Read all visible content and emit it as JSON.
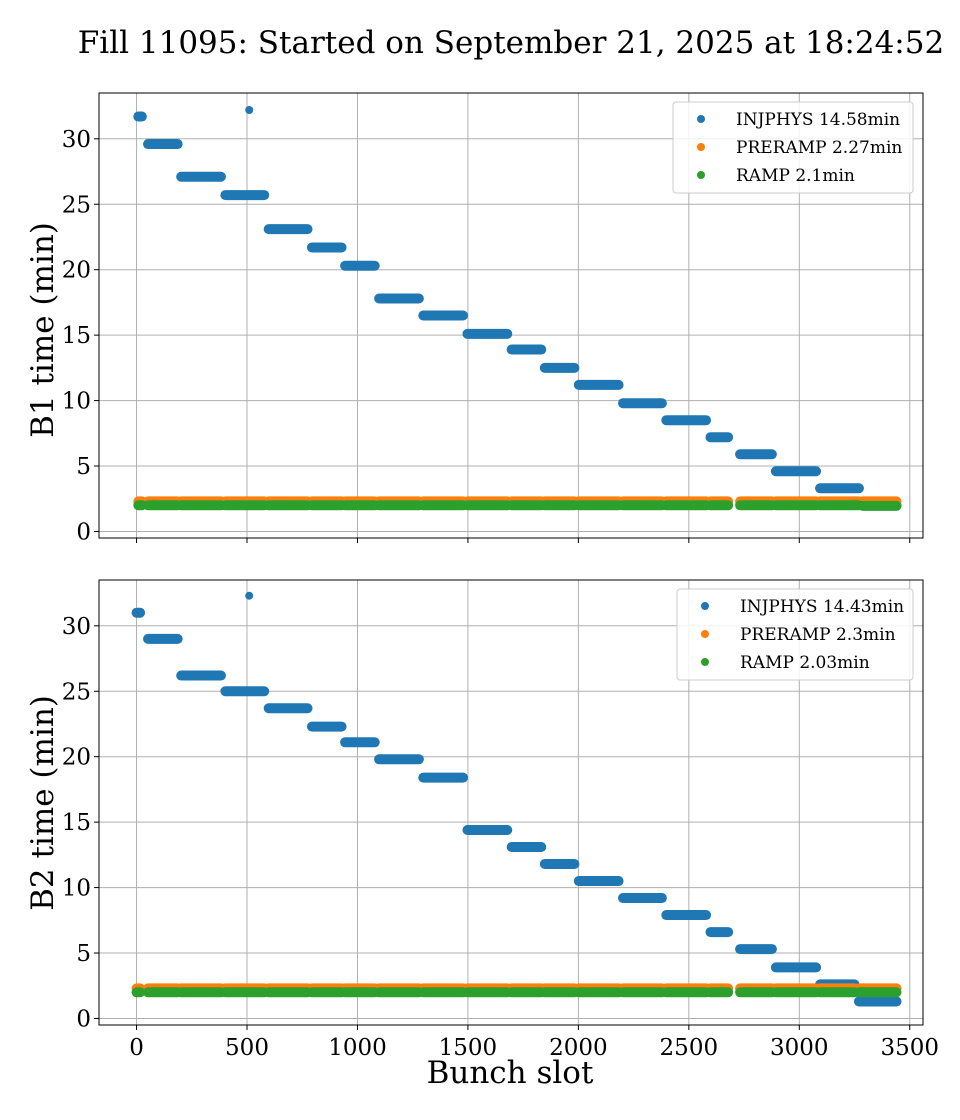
{
  "figure_title": "Fill 11095: Started on September 21, 2025 at 18:24:52",
  "chart_data": [
    {
      "type": "scatter",
      "ylabel": "B1 time (min)",
      "xlabel": "",
      "xlim": [
        -170,
        3560
      ],
      "ylim": [
        -0.5,
        33.5
      ],
      "xticks": [
        0,
        500,
        1000,
        1500,
        2000,
        2500,
        3000,
        3500
      ],
      "xtick_labels_visible": false,
      "yticks": [
        0,
        5,
        10,
        15,
        20,
        25,
        30
      ],
      "grid": true,
      "legend_position": "top-right",
      "series": [
        {
          "name": "INJPHYS 14.58min",
          "color": "#1f77b4",
          "trains": [
            {
              "x": [
                8,
                24
              ],
              "y": 31.7
            },
            {
              "x": [
                52,
                186
              ],
              "y": 29.6
            },
            {
              "x": [
                202,
                382
              ],
              "y": 27.1
            },
            {
              "x": [
                402,
                578
              ],
              "y": 25.7
            },
            {
              "x": [
                598,
                774
              ],
              "y": 23.1
            },
            {
              "x": [
                794,
                928
              ],
              "y": 21.7
            },
            {
              "x": [
                944,
                1078
              ],
              "y": 20.3
            },
            {
              "x": [
                1098,
                1278
              ],
              "y": 17.8
            },
            {
              "x": [
                1298,
                1478
              ],
              "y": 16.5
            },
            {
              "x": [
                1498,
                1678
              ],
              "y": 15.1
            },
            {
              "x": [
                1698,
                1832
              ],
              "y": 13.9
            },
            {
              "x": [
                1848,
                1982
              ],
              "y": 12.5
            },
            {
              "x": [
                2002,
                2182
              ],
              "y": 11.2
            },
            {
              "x": [
                2202,
                2378
              ],
              "y": 9.8
            },
            {
              "x": [
                2398,
                2578
              ],
              "y": 8.5
            },
            {
              "x": [
                2598,
                2678
              ],
              "y": 7.2
            },
            {
              "x": [
                2732,
                2876
              ],
              "y": 5.9
            },
            {
              "x": [
                2894,
                3076
              ],
              "y": 4.6
            },
            {
              "x": [
                3094,
                3270
              ],
              "y": 3.3
            },
            {
              "x": [
                3288,
                3440
              ],
              "y": 2.0
            }
          ],
          "points": [
            {
              "x": 510,
              "y": 32.2
            }
          ]
        },
        {
          "name": "PRERAMP 2.27min",
          "color": "#ff7f0e",
          "trains": [
            {
              "x": [
                8,
                24
              ],
              "y": 2.3
            },
            {
              "x": [
                52,
                186
              ],
              "y": 2.3
            },
            {
              "x": [
                202,
                382
              ],
              "y": 2.3
            },
            {
              "x": [
                402,
                578
              ],
              "y": 2.3
            },
            {
              "x": [
                598,
                774
              ],
              "y": 2.3
            },
            {
              "x": [
                794,
                928
              ],
              "y": 2.3
            },
            {
              "x": [
                944,
                1078
              ],
              "y": 2.3
            },
            {
              "x": [
                1098,
                1278
              ],
              "y": 2.3
            },
            {
              "x": [
                1298,
                1478
              ],
              "y": 2.3
            },
            {
              "x": [
                1498,
                1678
              ],
              "y": 2.3
            },
            {
              "x": [
                1698,
                1832
              ],
              "y": 2.3
            },
            {
              "x": [
                1848,
                1982
              ],
              "y": 2.3
            },
            {
              "x": [
                2002,
                2182
              ],
              "y": 2.3
            },
            {
              "x": [
                2202,
                2378
              ],
              "y": 2.3
            },
            {
              "x": [
                2398,
                2578
              ],
              "y": 2.3
            },
            {
              "x": [
                2598,
                2678
              ],
              "y": 2.3
            },
            {
              "x": [
                2732,
                2876
              ],
              "y": 2.3
            },
            {
              "x": [
                2894,
                3076
              ],
              "y": 2.3
            },
            {
              "x": [
                3094,
                3270
              ],
              "y": 2.3
            },
            {
              "x": [
                3288,
                3440
              ],
              "y": 2.3
            }
          ],
          "points": []
        },
        {
          "name": "RAMP 2.1min",
          "color": "#2ca02c",
          "trains": [
            {
              "x": [
                8,
                24
              ],
              "y": 2.0
            },
            {
              "x": [
                52,
                186
              ],
              "y": 2.0
            },
            {
              "x": [
                202,
                382
              ],
              "y": 2.0
            },
            {
              "x": [
                402,
                578
              ],
              "y": 2.0
            },
            {
              "x": [
                598,
                774
              ],
              "y": 2.0
            },
            {
              "x": [
                794,
                928
              ],
              "y": 2.0
            },
            {
              "x": [
                944,
                1078
              ],
              "y": 2.0
            },
            {
              "x": [
                1098,
                1278
              ],
              "y": 2.0
            },
            {
              "x": [
                1298,
                1478
              ],
              "y": 2.0
            },
            {
              "x": [
                1498,
                1678
              ],
              "y": 2.0
            },
            {
              "x": [
                1698,
                1832
              ],
              "y": 2.0
            },
            {
              "x": [
                1848,
                1982
              ],
              "y": 2.0
            },
            {
              "x": [
                2002,
                2182
              ],
              "y": 2.0
            },
            {
              "x": [
                2202,
                2378
              ],
              "y": 2.0
            },
            {
              "x": [
                2398,
                2578
              ],
              "y": 2.0
            },
            {
              "x": [
                2598,
                2678
              ],
              "y": 2.0
            },
            {
              "x": [
                2732,
                2876
              ],
              "y": 2.0
            },
            {
              "x": [
                2894,
                3076
              ],
              "y": 2.0
            },
            {
              "x": [
                3094,
                3270
              ],
              "y": 2.0
            },
            {
              "x": [
                3288,
                3440
              ],
              "y": 1.95
            }
          ],
          "points": []
        }
      ]
    },
    {
      "type": "scatter",
      "ylabel": "B2 time (min)",
      "xlabel": "Bunch slot",
      "xlim": [
        -170,
        3560
      ],
      "ylim": [
        -0.5,
        33.5
      ],
      "xticks": [
        0,
        500,
        1000,
        1500,
        2000,
        2500,
        3000,
        3500
      ],
      "xtick_labels_visible": true,
      "yticks": [
        0,
        5,
        10,
        15,
        20,
        25,
        30
      ],
      "grid": true,
      "legend_position": "top-right",
      "series": [
        {
          "name": "INJPHYS 14.43min",
          "color": "#1f77b4",
          "trains": [
            {
              "x": [
                0,
                16
              ],
              "y": 31.0
            },
            {
              "x": [
                52,
                186
              ],
              "y": 29.0
            },
            {
              "x": [
                202,
                382
              ],
              "y": 26.2
            },
            {
              "x": [
                402,
                578
              ],
              "y": 25.0
            },
            {
              "x": [
                598,
                774
              ],
              "y": 23.7
            },
            {
              "x": [
                794,
                928
              ],
              "y": 22.3
            },
            {
              "x": [
                944,
                1078
              ],
              "y": 21.1
            },
            {
              "x": [
                1098,
                1278
              ],
              "y": 19.8
            },
            {
              "x": [
                1298,
                1478
              ],
              "y": 18.4
            },
            {
              "x": [
                1498,
                1678
              ],
              "y": 14.4
            },
            {
              "x": [
                1698,
                1832
              ],
              "y": 13.1
            },
            {
              "x": [
                1848,
                1982
              ],
              "y": 11.8
            },
            {
              "x": [
                2002,
                2182
              ],
              "y": 10.5
            },
            {
              "x": [
                2202,
                2378
              ],
              "y": 9.2
            },
            {
              "x": [
                2398,
                2578
              ],
              "y": 7.9
            },
            {
              "x": [
                2598,
                2678
              ],
              "y": 6.6
            },
            {
              "x": [
                2732,
                2876
              ],
              "y": 5.3
            },
            {
              "x": [
                2894,
                3076
              ],
              "y": 3.9
            },
            {
              "x": [
                3094,
                3250
              ],
              "y": 2.6
            },
            {
              "x": [
                3270,
                3440
              ],
              "y": 1.3
            }
          ],
          "points": [
            {
              "x": 510,
              "y": 32.3
            }
          ]
        },
        {
          "name": "PRERAMP 2.3min",
          "color": "#ff7f0e",
          "trains": [
            {
              "x": [
                0,
                16
              ],
              "y": 2.3
            },
            {
              "x": [
                52,
                186
              ],
              "y": 2.3
            },
            {
              "x": [
                202,
                382
              ],
              "y": 2.3
            },
            {
              "x": [
                402,
                578
              ],
              "y": 2.3
            },
            {
              "x": [
                598,
                774
              ],
              "y": 2.3
            },
            {
              "x": [
                794,
                928
              ],
              "y": 2.3
            },
            {
              "x": [
                944,
                1078
              ],
              "y": 2.3
            },
            {
              "x": [
                1098,
                1278
              ],
              "y": 2.3
            },
            {
              "x": [
                1298,
                1478
              ],
              "y": 2.3
            },
            {
              "x": [
                1498,
                1678
              ],
              "y": 2.3
            },
            {
              "x": [
                1698,
                1832
              ],
              "y": 2.3
            },
            {
              "x": [
                1848,
                1982
              ],
              "y": 2.3
            },
            {
              "x": [
                2002,
                2182
              ],
              "y": 2.3
            },
            {
              "x": [
                2202,
                2378
              ],
              "y": 2.3
            },
            {
              "x": [
                2398,
                2578
              ],
              "y": 2.3
            },
            {
              "x": [
                2598,
                2678
              ],
              "y": 2.3
            },
            {
              "x": [
                2732,
                2876
              ],
              "y": 2.3
            },
            {
              "x": [
                2894,
                3076
              ],
              "y": 2.3
            },
            {
              "x": [
                3094,
                3250
              ],
              "y": 2.3
            },
            {
              "x": [
                3270,
                3440
              ],
              "y": 2.3
            }
          ],
          "points": []
        },
        {
          "name": "RAMP 2.03min",
          "color": "#2ca02c",
          "trains": [
            {
              "x": [
                0,
                16
              ],
              "y": 2.0
            },
            {
              "x": [
                52,
                186
              ],
              "y": 2.0
            },
            {
              "x": [
                202,
                382
              ],
              "y": 2.0
            },
            {
              "x": [
                402,
                578
              ],
              "y": 2.0
            },
            {
              "x": [
                598,
                774
              ],
              "y": 2.0
            },
            {
              "x": [
                794,
                928
              ],
              "y": 2.0
            },
            {
              "x": [
                944,
                1078
              ],
              "y": 2.0
            },
            {
              "x": [
                1098,
                1278
              ],
              "y": 2.0
            },
            {
              "x": [
                1298,
                1478
              ],
              "y": 2.0
            },
            {
              "x": [
                1498,
                1678
              ],
              "y": 2.0
            },
            {
              "x": [
                1698,
                1832
              ],
              "y": 2.0
            },
            {
              "x": [
                1848,
                1982
              ],
              "y": 2.0
            },
            {
              "x": [
                2002,
                2182
              ],
              "y": 2.0
            },
            {
              "x": [
                2202,
                2378
              ],
              "y": 2.0
            },
            {
              "x": [
                2398,
                2578
              ],
              "y": 2.0
            },
            {
              "x": [
                2598,
                2678
              ],
              "y": 2.0
            },
            {
              "x": [
                2732,
                2876
              ],
              "y": 2.0
            },
            {
              "x": [
                2894,
                3076
              ],
              "y": 2.0
            },
            {
              "x": [
                3094,
                3250
              ],
              "y": 2.0
            },
            {
              "x": [
                3270,
                3440
              ],
              "y": 2.0
            }
          ],
          "points": []
        }
      ]
    }
  ]
}
